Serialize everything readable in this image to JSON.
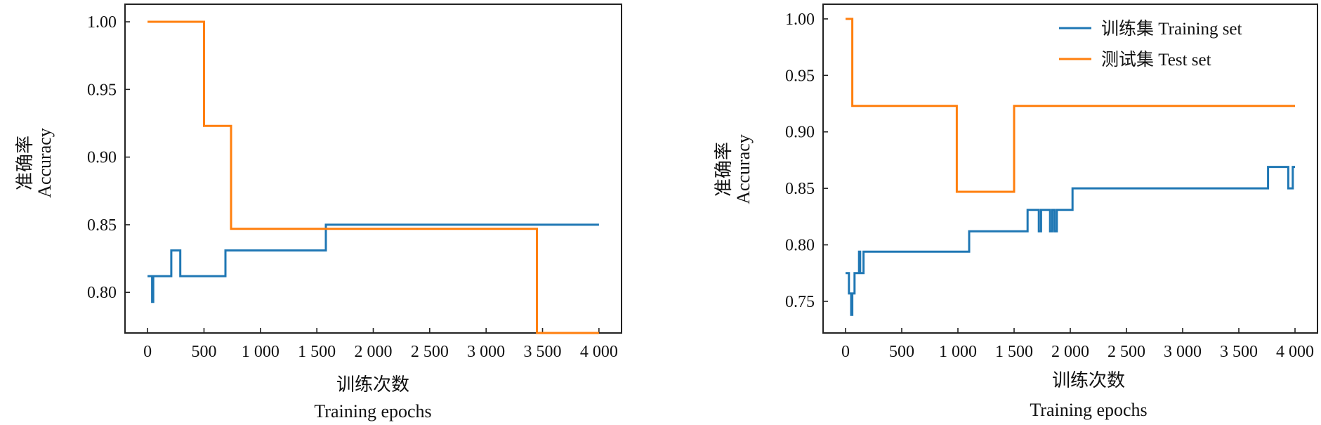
{
  "chart_data": [
    {
      "type": "line",
      "xlabel": [
        "训练次数",
        "Training epochs"
      ],
      "ylabel": [
        "准确率",
        "Accuracy"
      ],
      "xlim": [
        -200,
        4200
      ],
      "ylim": [
        0.77,
        1.013
      ],
      "xticks": [
        0,
        500,
        1000,
        1500,
        2000,
        2500,
        3000,
        3500,
        4000
      ],
      "xtick_labels": [
        "0",
        "500",
        "1 000",
        "1 500",
        "2 000",
        "2 500",
        "3 000",
        "3 500",
        "4 000"
      ],
      "yticks": [
        0.8,
        0.85,
        0.9,
        0.95,
        1.0
      ],
      "ytick_labels": [
        "0.80",
        "0.85",
        "0.90",
        "0.95",
        "1.00"
      ],
      "legend": null,
      "series": [
        {
          "color": "#1f77b4",
          "x": [
            0,
            40,
            40,
            50,
            50,
            60,
            60,
            210,
            210,
            290,
            290,
            690,
            690,
            1580,
            1580,
            4000
          ],
          "y": [
            0.812,
            0.812,
            0.793,
            0.793,
            0.812,
            0.812,
            0.812,
            0.812,
            0.831,
            0.831,
            0.812,
            0.812,
            0.831,
            0.831,
            0.85,
            0.85
          ]
        },
        {
          "color": "#ff7f0e",
          "x": [
            0,
            500,
            500,
            740,
            740,
            3450,
            3450,
            4000
          ],
          "y": [
            1.0,
            1.0,
            0.923,
            0.923,
            0.847,
            0.847,
            0.77,
            0.77
          ]
        }
      ]
    },
    {
      "type": "line",
      "xlabel": [
        "训练次数",
        "Training epochs"
      ],
      "ylabel": [
        "准确率",
        "Accuracy"
      ],
      "xlim": [
        -200,
        4200
      ],
      "ylim": [
        0.722,
        1.013
      ],
      "xticks": [
        0,
        500,
        1000,
        1500,
        2000,
        2500,
        3000,
        3500,
        4000
      ],
      "xtick_labels": [
        "0",
        "500",
        "1 000",
        "1 500",
        "2 000",
        "2 500",
        "3 000",
        "3 500",
        "4 000"
      ],
      "yticks": [
        0.75,
        0.8,
        0.85,
        0.9,
        0.95,
        1.0
      ],
      "ytick_labels": [
        "0.75",
        "0.80",
        "0.85",
        "0.90",
        "0.95",
        "1.00"
      ],
      "legend": "top-right",
      "series": [
        {
          "name": "训练集 Training set",
          "color": "#1f77b4",
          "x": [
            0,
            30,
            30,
            50,
            50,
            60,
            60,
            80,
            80,
            120,
            120,
            130,
            130,
            160,
            160,
            1100,
            1100,
            1620,
            1620,
            1720,
            1720,
            1740,
            1740,
            1820,
            1820,
            1840,
            1840,
            1860,
            1860,
            1880,
            1880,
            2020,
            2020,
            2050,
            2050,
            3760,
            3760,
            3940,
            3940,
            3980,
            3980,
            4000
          ],
          "y": [
            0.775,
            0.775,
            0.757,
            0.757,
            0.738,
            0.738,
            0.757,
            0.757,
            0.775,
            0.775,
            0.794,
            0.794,
            0.775,
            0.775,
            0.794,
            0.794,
            0.812,
            0.812,
            0.831,
            0.831,
            0.812,
            0.812,
            0.831,
            0.831,
            0.812,
            0.812,
            0.831,
            0.831,
            0.812,
            0.812,
            0.831,
            0.831,
            0.85,
            0.85,
            0.85,
            0.85,
            0.869,
            0.869,
            0.85,
            0.85,
            0.869,
            0.869
          ]
        },
        {
          "name": "测试集 Test set",
          "color": "#ff7f0e",
          "x": [
            0,
            60,
            60,
            990,
            990,
            1500,
            1500,
            4000
          ],
          "y": [
            1.0,
            1.0,
            0.923,
            0.923,
            0.847,
            0.847,
            0.923,
            0.923
          ]
        }
      ]
    }
  ]
}
